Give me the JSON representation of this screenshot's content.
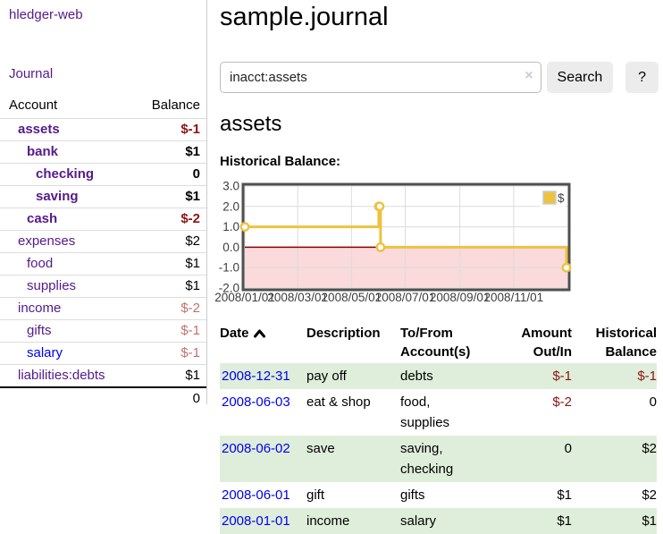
{
  "brand": "hledger-web",
  "nav": {
    "journal": "Journal"
  },
  "sidebar": {
    "headers": {
      "account": "Account",
      "balance": "Balance"
    },
    "rows": [
      {
        "name": "assets",
        "balance": "$-1",
        "indent": 1,
        "bold": true,
        "negative": "strong"
      },
      {
        "name": "bank",
        "balance": "$1",
        "indent": 2,
        "bold": true,
        "negative": "none"
      },
      {
        "name": "checking",
        "balance": "0",
        "indent": 3,
        "bold": true,
        "negative": "none"
      },
      {
        "name": "saving",
        "balance": "$1",
        "indent": 3,
        "bold": true,
        "negative": "none"
      },
      {
        "name": "cash",
        "balance": "$-2",
        "indent": 2,
        "bold": true,
        "negative": "strong"
      },
      {
        "name": "expenses",
        "balance": "$2",
        "indent": 1,
        "bold": false,
        "negative": "none"
      },
      {
        "name": "food",
        "balance": "$1",
        "indent": 2,
        "bold": false,
        "negative": "none"
      },
      {
        "name": "supplies",
        "balance": "$1",
        "indent": 2,
        "bold": false,
        "negative": "none"
      },
      {
        "name": "income",
        "balance": "$-2",
        "indent": 1,
        "bold": false,
        "negative": "soft"
      },
      {
        "name": "gifts",
        "balance": "$-1",
        "indent": 2,
        "bold": false,
        "negative": "soft"
      },
      {
        "name": "salary",
        "balance": "$-1",
        "indent": 2,
        "bold": false,
        "negative": "soft",
        "unvisited": true
      },
      {
        "name": "liabilities:debts",
        "balance": "$1",
        "indent": 1,
        "bold": false,
        "negative": "none"
      }
    ],
    "total": "0"
  },
  "header": {
    "title": "sample.journal"
  },
  "search": {
    "value": "inacct:assets",
    "clear": "×",
    "search_button": "Search",
    "help_button": "?"
  },
  "account_view": {
    "heading": "assets",
    "chart_title": "Historical Balance:"
  },
  "chart_data": {
    "type": "line",
    "title": "Historical Balance",
    "x_start": "2008-01-01",
    "x_end": "2009-01-01",
    "ylim": [
      -2,
      3
    ],
    "yticks": [
      3,
      2,
      1,
      0,
      -1,
      -2
    ],
    "xticks": [
      "2008/01/01",
      "2008/03/01",
      "2008/05/01",
      "2008/07/01",
      "2008/09/01",
      "2008/11/01"
    ],
    "grid": true,
    "legend": {
      "label": "$",
      "position": "top-right"
    },
    "series": [
      {
        "name": "$",
        "color": "#edc240",
        "step": true,
        "points": [
          [
            "2008-01-01",
            1
          ],
          [
            "2008-06-01",
            2
          ],
          [
            "2008-06-02",
            2
          ],
          [
            "2008-06-03",
            0
          ],
          [
            "2008-12-31",
            -1
          ]
        ]
      }
    ],
    "colors": {
      "negative_region": "#fadada",
      "zero_line": "#8b0000",
      "grid": "#dcdcdc",
      "border": "#4f4f4f",
      "tick_text": "#3d3d3d",
      "marker_fill": "#ffffff",
      "legend_swatch_border": "#cccccc"
    }
  },
  "register": {
    "headers": {
      "date": "Date",
      "description": "Description",
      "accounts": "To/From Account(s)",
      "amount": "Amount Out/In",
      "balance": "Historical Balance"
    },
    "rows": [
      {
        "date": "2008-12-31",
        "description": "pay off",
        "accounts": "debts",
        "amount": "$-1",
        "balance": "$-1"
      },
      {
        "date": "2008-06-03",
        "description": "eat & shop",
        "accounts": "food, supplies",
        "amount": "$-2",
        "balance": "0"
      },
      {
        "date": "2008-06-02",
        "description": "save",
        "accounts": "saving, checking",
        "amount": "0",
        "balance": "$2"
      },
      {
        "date": "2008-06-01",
        "description": "gift",
        "accounts": "gifts",
        "amount": "$1",
        "balance": "$2"
      },
      {
        "date": "2008-01-01",
        "description": "income",
        "accounts": "salary",
        "amount": "$1",
        "balance": "$1"
      }
    ]
  },
  "colors": {
    "link_visited": "#551a8b",
    "link_unvisited": "#0000ee",
    "negative_strong": "#8b1513",
    "negative_soft": "#c4716c",
    "row_shaded": "#dfeeda"
  }
}
